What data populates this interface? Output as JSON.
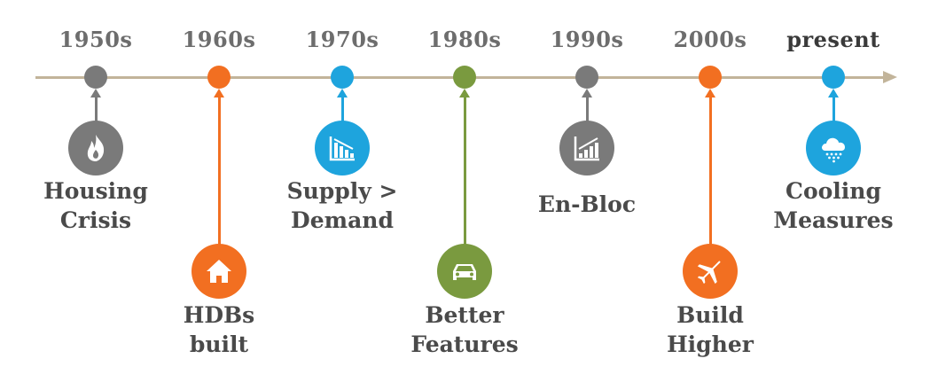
{
  "colors": {
    "gray": "#7a7a7a",
    "orange": "#f26f21",
    "blue": "#1ea4dd",
    "green": "#7a9a3f",
    "axis": "#c2b49a"
  },
  "timeline": {
    "eras": [
      "1950s",
      "1960s",
      "1970s",
      "1980s",
      "1990s",
      "2000s",
      "present"
    ],
    "events": [
      {
        "era": "1950s",
        "icon": "fire-icon",
        "color": "gray",
        "label_lines": [
          "Housing",
          "Crisis"
        ]
      },
      {
        "era": "1960s",
        "icon": "house-icon",
        "color": "orange",
        "label_lines": [
          "HDBs",
          "built"
        ]
      },
      {
        "era": "1970s",
        "icon": "chart-down-icon",
        "color": "blue",
        "label_lines": [
          "Supply >",
          "Demand"
        ]
      },
      {
        "era": "1980s",
        "icon": "car-icon",
        "color": "green",
        "label_lines": [
          "Better",
          "Features"
        ]
      },
      {
        "era": "1990s",
        "icon": "chart-up-icon",
        "color": "gray",
        "label_lines": [
          "En-Bloc"
        ]
      },
      {
        "era": "2000s",
        "icon": "airplane-icon",
        "color": "orange",
        "label_lines": [
          "Build",
          "Higher"
        ]
      },
      {
        "era": "present",
        "icon": "cloud-rain-icon",
        "color": "blue",
        "label_lines": [
          "Cooling",
          "Measures"
        ]
      }
    ]
  }
}
